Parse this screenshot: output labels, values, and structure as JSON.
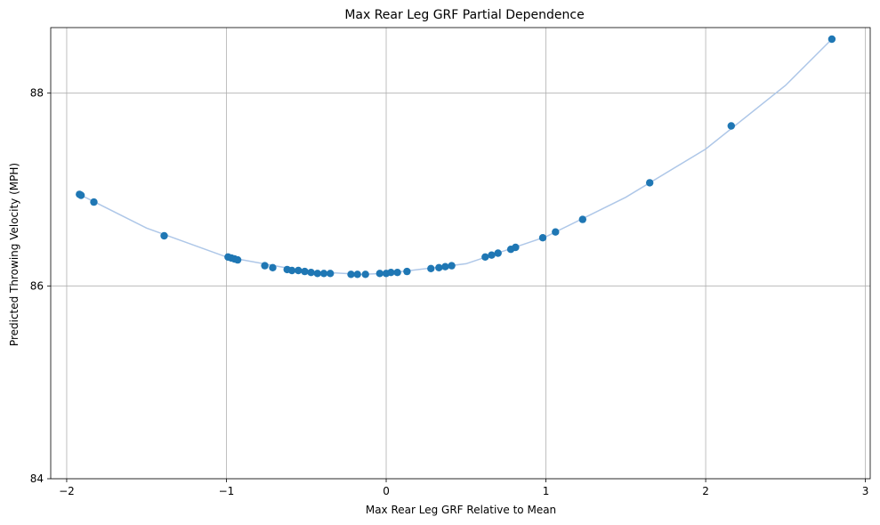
{
  "chart_data": {
    "type": "scatter",
    "title": "Max Rear Leg GRF Partial Dependence",
    "xlabel": "Max Rear Leg GRF Relative to Mean",
    "ylabel": "Predicted Throwing Velocity (MPH)",
    "xlim": [
      -2.1,
      3.03
    ],
    "ylim": [
      84,
      88.68
    ],
    "xticks": [
      -2,
      -1,
      0,
      1,
      2,
      3
    ],
    "yticks": [
      84,
      86,
      88
    ],
    "grid": true,
    "colors": {
      "points": "#1f77b4",
      "fit_line": "#aec7e8",
      "grid": "#b0b0b0"
    },
    "series": [
      {
        "kind": "points",
        "x": [
          -1.92,
          -1.91,
          -1.83,
          -1.39,
          -0.99,
          -0.97,
          -0.95,
          -0.93,
          -0.76,
          -0.71,
          -0.62,
          -0.59,
          -0.55,
          -0.51,
          -0.47,
          -0.43,
          -0.39,
          -0.35,
          -0.22,
          -0.18,
          -0.13,
          -0.04,
          0.0,
          0.03,
          0.07,
          0.13,
          0.28,
          0.33,
          0.37,
          0.41,
          0.62,
          0.66,
          0.7,
          0.78,
          0.81,
          0.98,
          1.06,
          1.23,
          1.65,
          2.16,
          2.79
        ],
        "y": [
          86.95,
          86.94,
          86.87,
          86.52,
          86.3,
          86.29,
          86.28,
          86.27,
          86.21,
          86.19,
          86.17,
          86.16,
          86.16,
          86.15,
          86.14,
          86.13,
          86.13,
          86.13,
          86.12,
          86.12,
          86.12,
          86.13,
          86.13,
          86.14,
          86.14,
          86.15,
          86.18,
          86.19,
          86.2,
          86.21,
          86.3,
          86.32,
          86.34,
          86.38,
          86.4,
          86.5,
          86.56,
          86.69,
          87.07,
          87.66,
          88.56
        ]
      },
      {
        "kind": "curve",
        "x": [
          -1.92,
          -1.5,
          -1.0,
          -0.5,
          -0.15,
          0.0,
          0.5,
          1.0,
          1.5,
          2.0,
          2.5,
          2.79
        ],
        "y": [
          86.95,
          86.6,
          86.3,
          86.15,
          86.12,
          86.13,
          86.23,
          86.51,
          86.92,
          87.42,
          88.08,
          88.56
        ]
      }
    ]
  }
}
